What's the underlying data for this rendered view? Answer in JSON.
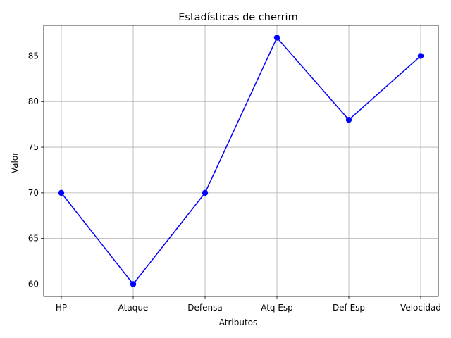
{
  "chart_data": {
    "type": "line",
    "title": "Estadísticas de cherrim",
    "xlabel": "Atributos",
    "ylabel": "Valor",
    "categories": [
      "HP",
      "Ataque",
      "Defensa",
      "Atq Esp",
      "Def Esp",
      "Velocidad"
    ],
    "series": [
      {
        "values": [
          70,
          60,
          70,
          87,
          78,
          85
        ],
        "color": "#0000ff",
        "marker": "circle"
      }
    ],
    "yticks": [
      60,
      65,
      70,
      75,
      80,
      85
    ],
    "ylim": [
      58.65,
      88.35
    ],
    "grid": true,
    "legend": "none"
  }
}
